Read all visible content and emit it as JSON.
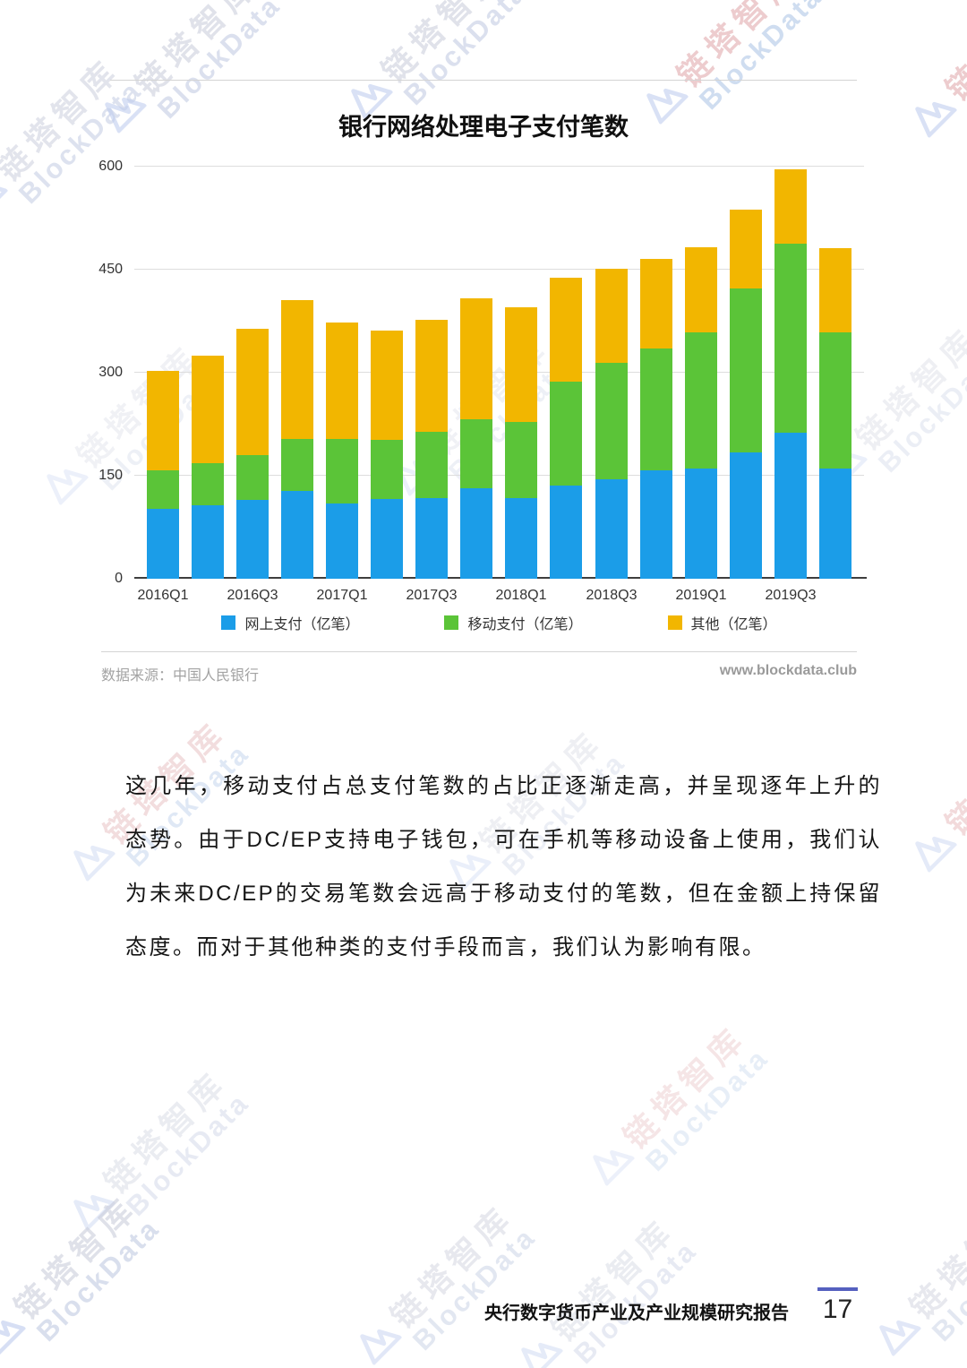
{
  "watermark": {
    "cn": "链塔智库",
    "en": "BlockData"
  },
  "chart": {
    "source_label": "数据来源：中国人民银行",
    "website": "www.blockdata.club"
  },
  "chart_data": {
    "type": "bar",
    "stacked": true,
    "title": "银行网络处理电子支付笔数",
    "categories": [
      "2016Q1",
      "2016Q2",
      "2016Q3",
      "2016Q4",
      "2017Q1",
      "2017Q2",
      "2017Q3",
      "2017Q4",
      "2018Q1",
      "2018Q2",
      "2018Q3",
      "2018Q4",
      "2019Q1",
      "2019Q2",
      "2019Q3",
      "2019Q4"
    ],
    "series": [
      {
        "name": "网上支付（亿笔）",
        "color": "#1b9de8",
        "values": [
          102,
          107,
          115,
          128,
          110,
          116,
          118,
          132,
          117,
          135,
          145,
          158,
          160,
          184,
          213,
          160
        ]
      },
      {
        "name": "移动支付（亿笔）",
        "color": "#5bc438",
        "values": [
          56,
          61,
          65,
          75,
          94,
          86,
          96,
          100,
          111,
          151,
          170,
          177,
          198,
          239,
          275,
          198
        ]
      },
      {
        "name": "其他（亿笔）",
        "color": "#f2b600",
        "values": [
          145,
          156,
          184,
          202,
          170,
          159,
          163,
          176,
          167,
          151,
          137,
          130,
          124,
          115,
          108,
          123
        ]
      }
    ],
    "ylim": [
      0,
      600
    ],
    "y_ticks": [
      0,
      150,
      300,
      450,
      600
    ],
    "x_tick_labels": [
      "2016Q1",
      "2016Q3",
      "2017Q1",
      "2017Q3",
      "2018Q1",
      "2018Q3",
      "2019Q1",
      "2019Q3"
    ],
    "grid": true,
    "legend_position": "bottom"
  },
  "body": {
    "paragraph": "这几年，移动支付占总支付笔数的占比正逐渐走高，并呈现逐年上升的态势。由于DC/EP支持电子钱包，可在手机等移动设备上使用，我们认为未来DC/EP的交易笔数会远高于移动支付的笔数，但在金额上持保留态度。而对于其他种类的支付手段而言，我们认为影响有限。"
  },
  "footer": {
    "report_title": "央行数字货币产业及产业规模研究报告",
    "page_number": "17"
  }
}
